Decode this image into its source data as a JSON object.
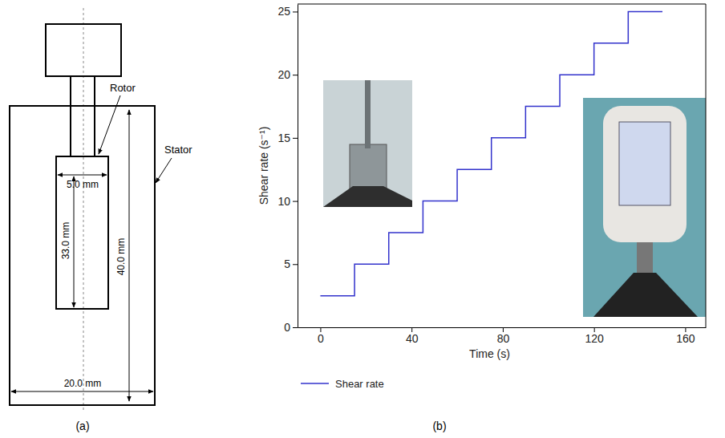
{
  "chart_data": {
    "type": "line",
    "line_style": "step",
    "caption": "(b)",
    "x_label": "Time (s)",
    "y_label": "Shear rate (s⁻¹)",
    "x": [
      0,
      15,
      30,
      45,
      60,
      75,
      90,
      105,
      120,
      135,
      150
    ],
    "series": [
      {
        "name": "Shear rate",
        "color": "#3333cc",
        "values": [
          2.5,
          5,
          7.5,
          10,
          12.5,
          15,
          17.5,
          20,
          22.5,
          25,
          25
        ]
      }
    ],
    "xlim": [
      -10,
      169
    ],
    "ylim": [
      0,
      25.6
    ],
    "xticks": [
      0,
      40,
      80,
      120,
      160
    ],
    "yticks": [
      0,
      5,
      10,
      15,
      20,
      25
    ],
    "grid": false,
    "legend": "bottom-left"
  },
  "diagram": {
    "caption": "(a)",
    "parts": [
      "Rotor",
      "Stator"
    ],
    "dimensions": [
      "5.0 mm",
      "33.0 mm",
      "40.0 mm",
      "20.0 mm"
    ]
  }
}
